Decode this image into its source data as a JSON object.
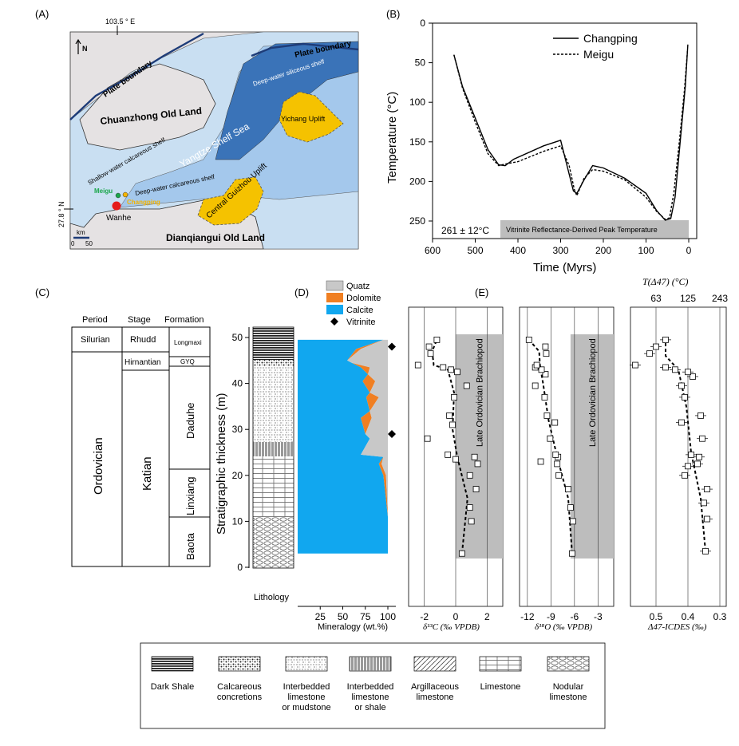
{
  "panel_labels": {
    "a": "(A)",
    "b": "(B)",
    "c": "(C)",
    "d": "(D)",
    "e": "(E)"
  },
  "map": {
    "longitude": "103.5 ° E",
    "latitude": "27.8 ° N",
    "north": "N",
    "scale_unit": "km",
    "scale_zero": "0",
    "scale_max": "50",
    "plate_boundary_left": "Plate boundary",
    "plate_boundary_right": "Plate boundary",
    "deep_siliceous": "Deep-water siliceous shelf",
    "chuanzhong": "Chuanzhong Old Land",
    "yichang": "Yichang Uplift",
    "yangtze": "Yangtze Shelf Sea",
    "shallow_calc": "Shallow-water calcareous shelf",
    "deep_calc": "Deep-water calcareous shelf",
    "meigu": "Meigu",
    "changping": "Changping",
    "wanhe": "Wanhe",
    "central_guizhou": "Central Guizhou Uplift",
    "dianqiangui": "Dianqiangui Old Land",
    "colors": {
      "ocean_light": "#c9dff2",
      "ocean_mid": "#a4c8ec",
      "ocean_dark": "#3a73b8",
      "land": "#e5e2e3",
      "uplift": "#f5c200",
      "wanhe": "#e51b1b",
      "meigu": "#1aa64a",
      "changping": "#f5b400"
    }
  },
  "thermal": {
    "ylabel": "Temperature (°C)",
    "xlabel": "Time (Myrs)",
    "legend_changping": "Changping",
    "legend_meigu": "Meigu",
    "peak_text": "261 ± 12°C",
    "vitrinite_band": "Vitrinite Reflectance-Derived Peak Temperature",
    "x_ticks": [
      "600",
      "500",
      "400",
      "300",
      "200",
      "100",
      "0"
    ],
    "y_ticks": [
      "0",
      "50",
      "100",
      "150",
      "200",
      "250"
    ]
  },
  "strat": {
    "headers": {
      "period": "Period",
      "stage": "Stage",
      "formation": "Formation"
    },
    "silurian": "Silurian",
    "rhudd": "Rhudd",
    "longmaxi": "Longmaxi",
    "ordovician": "Ordovician",
    "hirnantian": "Hirnantian",
    "gyq": "GYQ",
    "katian": "Katian",
    "daduhe": "Daduhe",
    "linxiang": "Linxiang",
    "baota": "Baota",
    "thickness_label": "Stratigraphic thickness (m)",
    "thickness_ticks": [
      "50",
      "40",
      "30",
      "20",
      "10",
      "0"
    ],
    "lithology_label": "Lithology"
  },
  "mineral": {
    "legend": {
      "quartz": "Quatz",
      "dolomite": "Dolomite",
      "calcite": "Calcite",
      "vitrinite": "Vitrinite"
    },
    "xlabel": "Mineralogy (wt.%)",
    "x_ticks": [
      "25",
      "50",
      "75",
      "100"
    ],
    "colors": {
      "quartz": "#c8c8c8",
      "dolomite": "#f07f22",
      "calcite": "#11a7ef"
    }
  },
  "isotope": {
    "brachiopod_label": "Late Ordovician Brachiopod",
    "d13c_ticks": [
      "-2",
      "0",
      "2"
    ],
    "d13c_label": "δ¹³C (‰ VPDB)",
    "d18o_ticks": [
      "-12",
      "-9",
      "-6",
      "-3"
    ],
    "d18o_label": "δ¹⁸O (‰ VPDB)",
    "d47_top_label": "T(Δ47) (°C)",
    "d47_top_ticks": [
      "63",
      "125",
      "243"
    ],
    "d47_ticks": [
      "0.5",
      "0.4",
      "0.3"
    ],
    "d47_label": "Δ47-ICDES (‰)"
  },
  "lithology_legend": [
    {
      "label": "Dark Shale"
    },
    {
      "label": "Calcareous concretions"
    },
    {
      "label": "Interbedded limestone or mudstone"
    },
    {
      "label": "Interbedded limestone or shale"
    },
    {
      "label": "Argillaceous limestone"
    },
    {
      "label": "Limestone"
    },
    {
      "label": "Nodular limestone"
    }
  ],
  "chart_data": [
    {
      "type": "line",
      "title": "",
      "xlabel": "Time (Myrs)",
      "ylabel": "Temperature (°C)",
      "xlim": [
        600,
        0
      ],
      "ylim": [
        0,
        270
      ],
      "series": [
        {
          "name": "Changping",
          "x": [
            550,
            530,
            500,
            470,
            445,
            430,
            410,
            340,
            300,
            285,
            270,
            262,
            245,
            225,
            200,
            150,
            100,
            75,
            55,
            42,
            32,
            20,
            8,
            2
          ],
          "y": [
            40,
            80,
            120,
            160,
            179,
            180,
            172,
            155,
            148,
            180,
            212,
            215,
            198,
            180,
            183,
            196,
            215,
            237,
            249,
            247,
            220,
            150,
            80,
            27
          ]
        },
        {
          "name": "Meigu",
          "x": [
            550,
            530,
            500,
            470,
            445,
            430,
            400,
            340,
            300,
            280,
            268,
            262,
            245,
            225,
            200,
            150,
            100,
            75,
            55,
            45,
            35,
            22,
            10,
            3
          ],
          "y": [
            40,
            82,
            125,
            165,
            180,
            178,
            175,
            162,
            155,
            180,
            210,
            218,
            196,
            185,
            187,
            198,
            220,
            238,
            248,
            246,
            215,
            150,
            85,
            35
          ]
        }
      ]
    },
    {
      "type": "area",
      "title": "",
      "xlabel": "Mineralogy (wt.%)",
      "ylabel": "Stratigraphic thickness (m)",
      "ylim": [
        0,
        50
      ],
      "depths": [
        3,
        11,
        20,
        22.5,
        24,
        24.5,
        28,
        29,
        32.5,
        34,
        37,
        38,
        40.5,
        42,
        43.5,
        44.5,
        45,
        47.5,
        49.5
      ],
      "series": [
        {
          "name": "Calcite",
          "values": [
            100,
            100,
            95,
            90,
            95,
            70,
            80,
            75,
            70,
            80,
            76,
            80,
            72,
            78,
            70,
            60,
            55,
            65,
            95
          ]
        },
        {
          "name": "Dolomite",
          "values": [
            0,
            0,
            3,
            3,
            0,
            0,
            0,
            0,
            12,
            0,
            14,
            0,
            14,
            0,
            10,
            0,
            0,
            5,
            0
          ]
        },
        {
          "name": "Quatz",
          "values": [
            0,
            0,
            2,
            7,
            5,
            30,
            20,
            25,
            18,
            20,
            10,
            20,
            14,
            22,
            20,
            40,
            45,
            30,
            5
          ]
        }
      ],
      "vitrinite_depths": [
        29,
        48
      ]
    },
    {
      "type": "scatter",
      "title": "",
      "xlabel": "δ13C (‰ VPDB)",
      "xlim": [
        -3,
        3
      ],
      "points": [
        {
          "depth": 3,
          "value": 0.4
        },
        {
          "depth": 10,
          "value": 1.0
        },
        {
          "depth": 13,
          "value": 0.9
        },
        {
          "depth": 17,
          "value": 1.3
        },
        {
          "depth": 20,
          "value": 0.9
        },
        {
          "depth": 22.5,
          "value": 1.4
        },
        {
          "depth": 23.5,
          "value": 0.0
        },
        {
          "depth": 24,
          "value": 1.2
        },
        {
          "depth": 24.5,
          "value": -0.5
        },
        {
          "depth": 28,
          "value": -1.8
        },
        {
          "depth": 31,
          "value": -0.2
        },
        {
          "depth": 33,
          "value": -0.4
        },
        {
          "depth": 37,
          "value": -0.1
        },
        {
          "depth": 39.5,
          "value": 0.7
        },
        {
          "depth": 42.5,
          "value": 0.1
        },
        {
          "depth": 43,
          "value": -0.3
        },
        {
          "depth": 43.5,
          "value": -0.8
        },
        {
          "depth": 44,
          "value": -2.4
        },
        {
          "depth": 46.5,
          "value": -1.6
        },
        {
          "depth": 48,
          "value": -1.7
        },
        {
          "depth": 49.5,
          "value": -1.2
        }
      ],
      "trend": [
        {
          "depth": 3,
          "value": 0.4
        },
        {
          "depth": 15,
          "value": 0.75
        },
        {
          "depth": 24,
          "value": 0.1
        },
        {
          "depth": 30,
          "value": -0.2
        },
        {
          "depth": 38,
          "value": -0.1
        },
        {
          "depth": 43,
          "value": -0.5
        },
        {
          "depth": 44,
          "value": -1.4
        },
        {
          "depth": 47,
          "value": -1.5
        },
        {
          "depth": 49.5,
          "value": -1.2
        }
      ],
      "band_label": "Late Ordovician Brachiopod",
      "band": [
        0,
        3
      ]
    },
    {
      "type": "scatter",
      "title": "",
      "xlabel": "δ18O (‰ VPDB)",
      "xlim": [
        -13,
        -1
      ],
      "points": [
        {
          "depth": 3,
          "value": -6.3
        },
        {
          "depth": 10,
          "value": -6.2
        },
        {
          "depth": 13,
          "value": -6.5
        },
        {
          "depth": 17,
          "value": -6.8
        },
        {
          "depth": 20,
          "value": -8.0
        },
        {
          "depth": 22.5,
          "value": -8.2
        },
        {
          "depth": 23,
          "value": -10.3
        },
        {
          "depth": 24,
          "value": -8.1
        },
        {
          "depth": 24.5,
          "value": -8.4
        },
        {
          "depth": 28,
          "value": -9.1
        },
        {
          "depth": 31.5,
          "value": -8.5
        },
        {
          "depth": 33,
          "value": -9.5
        },
        {
          "depth": 37,
          "value": -9.8
        },
        {
          "depth": 39.5,
          "value": -11.0
        },
        {
          "depth": 42,
          "value": -9.7
        },
        {
          "depth": 43,
          "value": -10.2
        },
        {
          "depth": 43.5,
          "value": -11.0
        },
        {
          "depth": 44,
          "value": -10.8
        },
        {
          "depth": 46.5,
          "value": -9.6
        },
        {
          "depth": 48,
          "value": -9.7
        },
        {
          "depth": 49.5,
          "value": -11.8
        }
      ],
      "trend": [
        {
          "depth": 3,
          "value": -6.3
        },
        {
          "depth": 15,
          "value": -6.8
        },
        {
          "depth": 24,
          "value": -8.2
        },
        {
          "depth": 32,
          "value": -9.3
        },
        {
          "depth": 40,
          "value": -10.0
        },
        {
          "depth": 44,
          "value": -10.4
        },
        {
          "depth": 47,
          "value": -10.5
        },
        {
          "depth": 49.5,
          "value": -11.8
        }
      ],
      "band_label": "Late Ordovician Brachiopod",
      "band": [
        -6.5,
        -1
      ]
    },
    {
      "type": "scatter",
      "title": "",
      "xlabel": "Δ47-ICDES (‰)",
      "xlim": [
        0.58,
        0.28
      ],
      "top_axis": {
        "label": "T(Δ47) (°C)",
        "ticks": [
          63,
          125,
          243
        ]
      },
      "points": [
        {
          "depth": 3.5,
          "value": 0.345
        },
        {
          "depth": 10.5,
          "value": 0.34
        },
        {
          "depth": 14,
          "value": 0.35
        },
        {
          "depth": 17,
          "value": 0.34
        },
        {
          "depth": 20,
          "value": 0.41
        },
        {
          "depth": 22,
          "value": 0.4
        },
        {
          "depth": 22.5,
          "value": 0.37
        },
        {
          "depth": 24,
          "value": 0.365
        },
        {
          "depth": 24.5,
          "value": 0.39
        },
        {
          "depth": 28,
          "value": 0.355
        },
        {
          "depth": 31.5,
          "value": 0.42
        },
        {
          "depth": 33,
          "value": 0.36
        },
        {
          "depth": 37,
          "value": 0.41
        },
        {
          "depth": 39.5,
          "value": 0.42
        },
        {
          "depth": 41.5,
          "value": 0.385
        },
        {
          "depth": 42.5,
          "value": 0.4
        },
        {
          "depth": 43,
          "value": 0.44
        },
        {
          "depth": 43.5,
          "value": 0.47
        },
        {
          "depth": 44,
          "value": 0.565
        },
        {
          "depth": 46.5,
          "value": 0.52
        },
        {
          "depth": 48,
          "value": 0.5
        },
        {
          "depth": 49.5,
          "value": 0.47
        }
      ],
      "trend": [
        {
          "depth": 3.5,
          "value": 0.345
        },
        {
          "depth": 15,
          "value": 0.36
        },
        {
          "depth": 25,
          "value": 0.39
        },
        {
          "depth": 35,
          "value": 0.405
        },
        {
          "depth": 43,
          "value": 0.43
        },
        {
          "depth": 46,
          "value": 0.47
        },
        {
          "depth": 49.5,
          "value": 0.47
        }
      ]
    }
  ]
}
